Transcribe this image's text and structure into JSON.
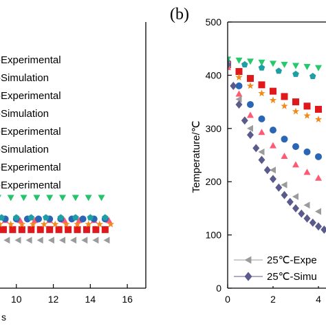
{
  "panel_b_label": "(b)",
  "chart_data": [
    {
      "panel": "a",
      "type": "scatter",
      "xlim": [
        8,
        17
      ],
      "xticks": [
        10,
        12,
        14,
        16
      ],
      "xlabel_fragment": "s",
      "legend": [
        "-Experimental",
        "-Simulation",
        "-Experimental",
        "-Simulation",
        "-Experimental",
        "-Simulation",
        "-Experimental",
        "-Experimental"
      ],
      "series": [
        {
          "color": "#9b9b9b",
          "marker": "tri-left",
          "x": [
            8.3,
            8.9,
            9.5,
            10.1,
            10.7,
            11.3,
            11.9,
            12.5,
            13.1,
            13.7,
            14.3,
            14.9
          ],
          "y": [
            0.82,
            0.82,
            0.82,
            0.82,
            0.82,
            0.82,
            0.82,
            0.82,
            0.82,
            0.82,
            0.82,
            0.82
          ]
        },
        {
          "color": "#e0181b",
          "marker": "square",
          "x": [
            8.3,
            8.8,
            9.3,
            9.8,
            10.3,
            10.8,
            11.3,
            11.8,
            12.3,
            12.8,
            13.3,
            13.8,
            14.3,
            14.8
          ],
          "y": [
            0.78,
            0.78,
            0.78,
            0.78,
            0.78,
            0.78,
            0.78,
            0.78,
            0.78,
            0.78,
            0.78,
            0.78,
            0.78,
            0.78
          ]
        },
        {
          "color": "#f08a1c",
          "marker": "star",
          "x": [
            8.5,
            9.1,
            9.7,
            10.3,
            10.9,
            11.5,
            12.1,
            12.7,
            13.3,
            13.9,
            14.5,
            15.1
          ],
          "y": [
            0.76,
            0.76,
            0.76,
            0.76,
            0.76,
            0.76,
            0.76,
            0.76,
            0.76,
            0.76,
            0.76,
            0.76
          ]
        },
        {
          "color": "#ff5a74",
          "marker": "tri-up",
          "x": [
            8.6,
            9.4,
            10.2,
            11.0,
            11.8,
            12.6,
            13.4,
            14.2,
            15.0
          ],
          "y": [
            0.745,
            0.745,
            0.745,
            0.745,
            0.745,
            0.745,
            0.745,
            0.745,
            0.745
          ]
        },
        {
          "color": "#2a66b5",
          "marker": "circle",
          "x": [
            8.2,
            8.8,
            9.4,
            10.0,
            10.6,
            11.2,
            11.8,
            12.4,
            13.0,
            13.6,
            14.2,
            14.8
          ],
          "y": [
            0.74,
            0.74,
            0.74,
            0.74,
            0.74,
            0.74,
            0.74,
            0.74,
            0.74,
            0.74,
            0.74,
            0.74
          ]
        },
        {
          "color": "#1f9fa5",
          "marker": "pentagon",
          "x": [
            8.4,
            9.2,
            10.0,
            10.8,
            11.6,
            12.4,
            13.2,
            14.0,
            14.8
          ],
          "y": [
            0.735,
            0.735,
            0.735,
            0.735,
            0.735,
            0.735,
            0.735,
            0.735,
            0.735
          ]
        },
        {
          "color": "#24c46a",
          "marker": "tri-down",
          "x": [
            8.3,
            9.0,
            9.7,
            10.4,
            11.1,
            11.8,
            12.5,
            13.2,
            13.9,
            14.6
          ],
          "y": [
            0.66,
            0.66,
            0.66,
            0.66,
            0.66,
            0.66,
            0.66,
            0.66,
            0.66,
            0.66
          ]
        }
      ]
    },
    {
      "panel": "b",
      "type": "scatter",
      "xlim": [
        0,
        5.5
      ],
      "ylim": [
        0,
        500
      ],
      "xticks": [
        0,
        2,
        4
      ],
      "yticks": [
        0,
        100,
        200,
        300,
        400,
        500
      ],
      "ylabel": "Temperature/℃",
      "legend": [
        "25℃-Expe",
        "25℃-Simu"
      ],
      "series": [
        {
          "color": "#27c96c",
          "marker": "tri-down",
          "x": [
            0.0,
            0.5,
            1.0,
            1.5,
            2.0,
            2.5,
            3.0,
            3.5,
            4.0,
            4.5,
            5.0
          ],
          "y": [
            430,
            428,
            426,
            424,
            422,
            420,
            418,
            416,
            414,
            412,
            410
          ]
        },
        {
          "color": "#1f9fa5",
          "marker": "pentagon",
          "x": [
            0.0,
            0.75,
            1.5,
            2.25,
            3.0,
            3.75,
            4.5,
            5.25
          ],
          "y": [
            425,
            420,
            414,
            408,
            402,
            398,
            394,
            391
          ]
        },
        {
          "color": "#e0181b",
          "marker": "square",
          "x": [
            0.0,
            0.5,
            1.0,
            1.5,
            2.0,
            2.5,
            3.0,
            3.5,
            4.0,
            4.5,
            5.0
          ],
          "y": [
            420,
            407,
            394,
            382,
            370,
            360,
            350,
            342,
            336,
            330,
            325
          ]
        },
        {
          "color": "#f08a1c",
          "marker": "star",
          "x": [
            0.0,
            0.5,
            1.0,
            1.5,
            2.0,
            2.5,
            3.0,
            3.5,
            4.0,
            4.5,
            5.0
          ],
          "y": [
            415,
            396,
            380,
            366,
            353,
            342,
            332,
            324,
            317,
            311,
            305
          ]
        },
        {
          "color": "#2a66b5",
          "marker": "circle",
          "x": [
            0.0,
            0.5,
            1.0,
            1.5,
            2.0,
            2.5,
            3.0,
            3.5,
            4.0,
            4.5,
            5.0
          ],
          "y": [
            420,
            380,
            345,
            318,
            297,
            280,
            266,
            256,
            247,
            240,
            234
          ]
        },
        {
          "color": "#ff5a74",
          "marker": "tri-up",
          "x": [
            0.0,
            0.5,
            1.0,
            1.5,
            2.0,
            2.5,
            3.0,
            3.5,
            4.0,
            4.5,
            5.0
          ],
          "y": [
            415,
            365,
            325,
            293,
            268,
            248,
            232,
            218,
            207,
            199,
            192
          ]
        },
        {
          "color": "#9b9b9b",
          "marker": "tri-left",
          "x": [
            0.0,
            0.5,
            1.0,
            1.5,
            2.0,
            2.5,
            3.0,
            3.5,
            4.0,
            4.5,
            5.0
          ],
          "y": [
            420,
            355,
            300,
            256,
            222,
            194,
            172,
            156,
            144,
            136,
            130
          ]
        },
        {
          "color": "#5a5a8c",
          "marker": "diamond",
          "x": [
            0.0,
            0.25,
            0.5,
            0.75,
            1.0,
            1.25,
            1.5,
            1.75,
            2.0,
            2.25,
            2.5,
            2.75,
            3.0,
            3.25,
            3.5,
            3.75,
            4.0,
            4.25,
            4.5,
            4.75,
            5.0
          ],
          "y": [
            420,
            380,
            345,
            315,
            288,
            263,
            241,
            222,
            205,
            189,
            175,
            162,
            150,
            140,
            131,
            123,
            116,
            110,
            105,
            100,
            96
          ]
        }
      ]
    }
  ]
}
